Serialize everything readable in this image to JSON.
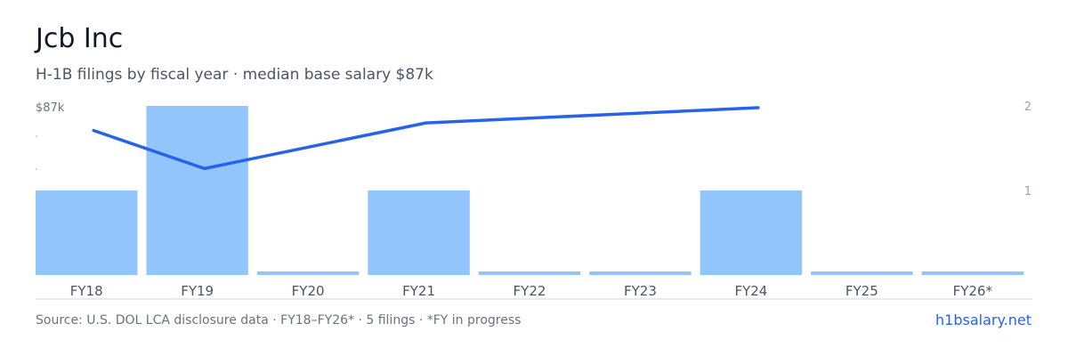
{
  "header": {
    "title": "Jcb Inc",
    "subtitle": "H-1B filings by fiscal year · median base salary $87k"
  },
  "footer": {
    "source": "Source: U.S. DOL LCA disclosure data · FY18–FY26* · 5 filings · *FY in progress",
    "site": "h1bsalary.net"
  },
  "chart_data": {
    "type": "bar",
    "categories": [
      "FY18",
      "FY19",
      "FY20",
      "FY21",
      "FY22",
      "FY23",
      "FY24",
      "FY25",
      "FY26*"
    ],
    "series": [
      {
        "type": "bar",
        "axis": "right",
        "values": [
          1,
          2,
          0,
          1,
          0,
          0,
          1,
          0,
          0
        ]
      },
      {
        "type": "line",
        "axis": "left",
        "values": [
          86.7,
          86.2,
          null,
          86.8,
          null,
          null,
          87.0,
          null,
          null
        ]
      }
    ],
    "y_left": {
      "max_label": "$87k",
      "range": [
        84.8,
        87.0
      ]
    },
    "y_right": {
      "ticks": [
        "1",
        "2"
      ],
      "range": [
        0,
        2.2
      ]
    },
    "colors": {
      "bar": "#93c5fd",
      "line": "#2563eb",
      "baseline": "#d1d5db"
    },
    "grid": false,
    "legend": "none"
  }
}
